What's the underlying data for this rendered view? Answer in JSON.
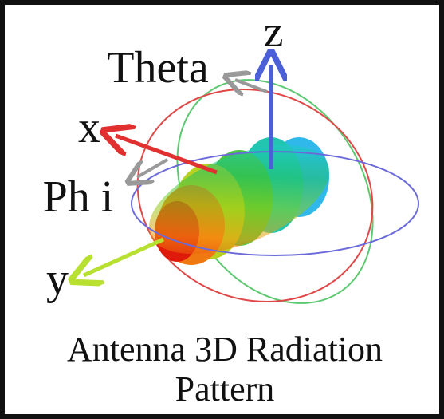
{
  "labels": {
    "z": "z",
    "theta": "Theta",
    "x": "x",
    "phi": "Ph i",
    "y": "y"
  },
  "caption": [
    "Antenna 3D Radiation",
    "Pattern"
  ]
}
